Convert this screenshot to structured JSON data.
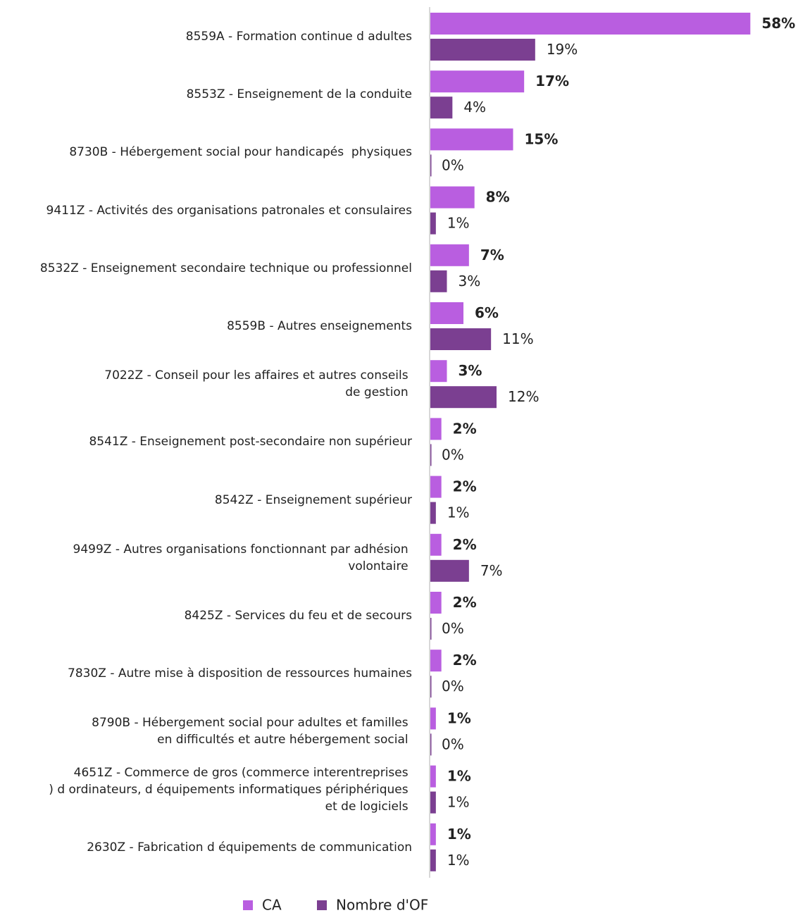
{
  "chart_data": {
    "type": "barh",
    "categories": [
      "8559A - Formation continue d adultes",
      "8553Z - Enseignement de la conduite",
      "8730B - Hébergement social pour handicapés  physiques",
      "9411Z - Activités des organisations patronales et consulaires",
      "8532Z - Enseignement secondaire technique ou professionnel",
      "8559B - Autres enseignements",
      "7022Z - Conseil pour les affaires et autres conseils \nde gestion ",
      "8541Z - Enseignement post-secondaire non supérieur",
      "8542Z - Enseignement supérieur",
      "9499Z - Autres organisations fonctionnant par adhésion \nvolontaire ",
      "8425Z - Services du feu et de secours",
      "7830Z - Autre mise à disposition de ressources humaines",
      "8790B - Hébergement social pour adultes et familles \nen difficultés et autre hébergement social ",
      "4651Z - Commerce de gros (commerce interentreprises \n) d ordinateurs, d équipements informatiques périphériques \net de logiciels ",
      "2630Z - Fabrication d équipements de communication"
    ],
    "series": [
      {
        "name": "CA",
        "color": "#b95ee0",
        "bold": true,
        "values": [
          58,
          17,
          15,
          8,
          7,
          6,
          3,
          2,
          2,
          2,
          2,
          2,
          1,
          1,
          1
        ],
        "value_labels": [
          "58%",
          "17%",
          "15%",
          "8%",
          "7%",
          "6%",
          "3%",
          "2%",
          "2%",
          "2%",
          "2%",
          "2%",
          "1%",
          "1%",
          "1%"
        ]
      },
      {
        "name": "Nombre d'OF",
        "color": "#7b3f91",
        "bold": false,
        "values": [
          19,
          4,
          0,
          1,
          3,
          11,
          12,
          0,
          1,
          7,
          0,
          0,
          0,
          1,
          1
        ],
        "value_labels": [
          "19%",
          "4%",
          "0%",
          "1%",
          "3%",
          "11%",
          "12%",
          "0%",
          "1%",
          "7%",
          "0%",
          "0%",
          "0%",
          "1%",
          "1%"
        ]
      }
    ],
    "xlim": [
      0,
      60
    ]
  }
}
